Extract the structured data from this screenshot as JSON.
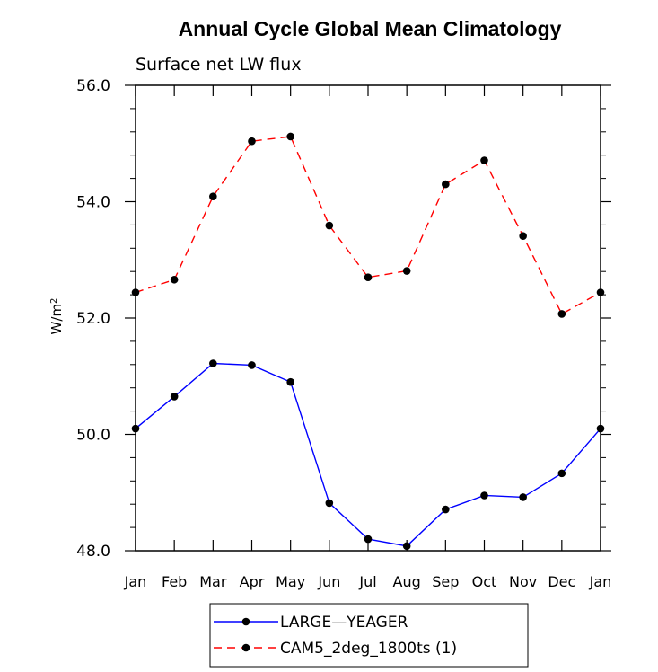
{
  "chart_data": {
    "type": "line",
    "title": "Annual Cycle Global Mean Climatology",
    "subtitle": "Surface net LW flux",
    "ylabel_base": "W/m",
    "ylabel_sup": "2",
    "categories": [
      "Jan",
      "Feb",
      "Mar",
      "Apr",
      "May",
      "Jun",
      "Jul",
      "Aug",
      "Sep",
      "Oct",
      "Nov",
      "Dec",
      "Jan"
    ],
    "ylim": [
      48.0,
      56.0
    ],
    "yticks": [
      "48.0",
      "50.0",
      "52.0",
      "54.0",
      "56.0"
    ],
    "series": [
      {
        "name": "LARGE—YEAGER",
        "color": "#0000ff",
        "dash": "solid",
        "values": [
          50.1,
          50.65,
          51.22,
          51.19,
          50.9,
          48.82,
          48.2,
          48.08,
          48.71,
          48.95,
          48.92,
          49.33,
          50.1
        ]
      },
      {
        "name": "CAM5_2deg_1800ts (1)",
        "color": "#ff0000",
        "dash": "dashed",
        "values": [
          52.44,
          52.66,
          54.09,
          55.04,
          55.12,
          53.59,
          52.7,
          52.81,
          54.3,
          54.71,
          53.41,
          52.07,
          52.44
        ]
      }
    ],
    "legend_position": "bottom-center"
  }
}
